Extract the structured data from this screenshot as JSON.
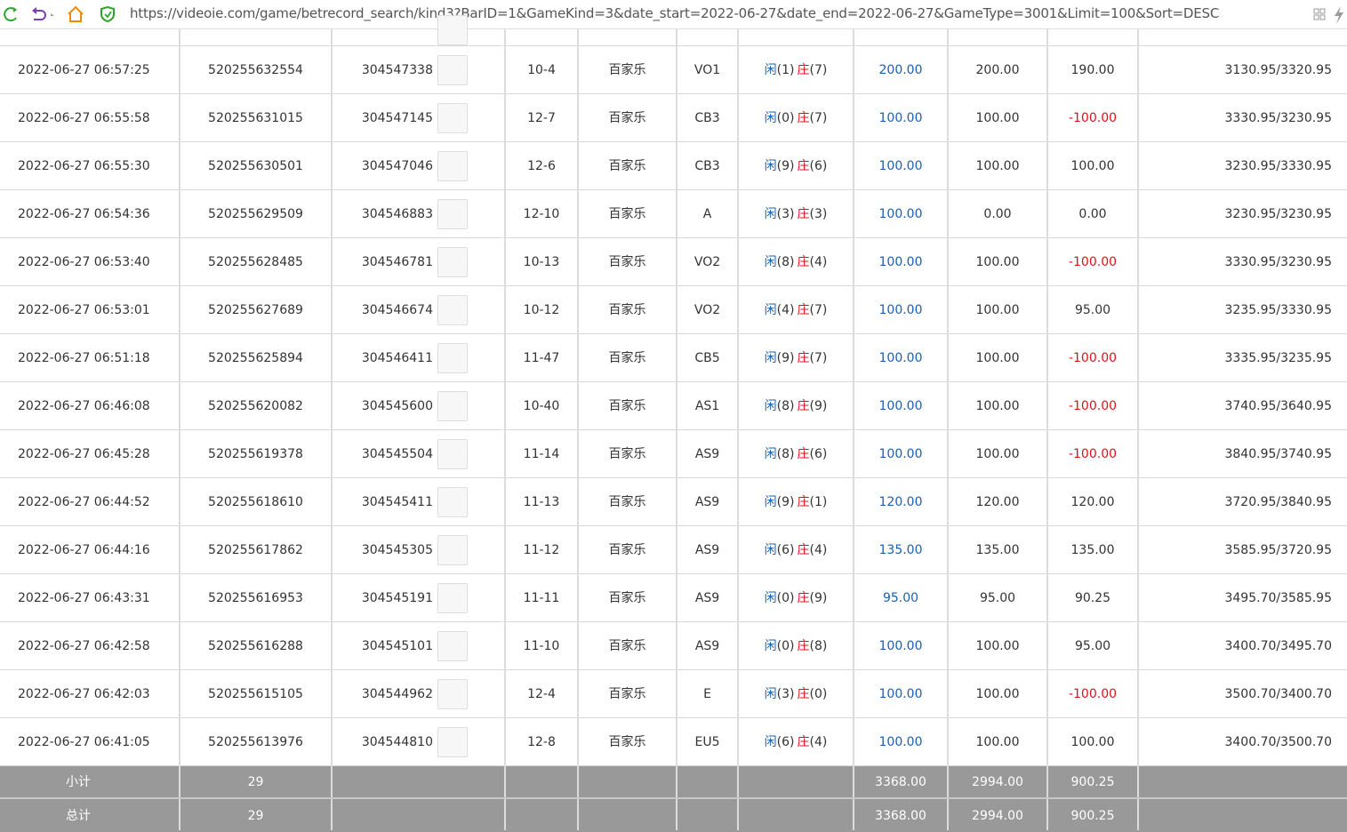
{
  "address_bar": {
    "url": "https://videoie.com/game/betrecord_search/kind3?BarID=1&GameKind=3&date_start=2022-06-27&date_end=2022-06-27&GameType=3001&Limit=100&Sort=DESC"
  },
  "table": {
    "player_label": "闲",
    "banker_label": "庄",
    "rows": [
      {
        "time": "2022-06-27 06:57:25",
        "bet_id": "520255632554",
        "game_id": "304547338",
        "round": "10-4",
        "game": "百家乐",
        "table": "VO1",
        "player": "(1)",
        "banker": "(7)",
        "bet": "200.00",
        "valid": "200.00",
        "profit": "190.00",
        "balance": "3130.95/3320.95"
      },
      {
        "time": "2022-06-27 06:55:58",
        "bet_id": "520255631015",
        "game_id": "304547145",
        "round": "12-7",
        "game": "百家乐",
        "table": "CB3",
        "player": "(0)",
        "banker": "(7)",
        "bet": "100.00",
        "valid": "100.00",
        "profit": "-100.00",
        "balance": "3330.95/3230.95"
      },
      {
        "time": "2022-06-27 06:55:30",
        "bet_id": "520255630501",
        "game_id": "304547046",
        "round": "12-6",
        "game": "百家乐",
        "table": "CB3",
        "player": "(9)",
        "banker": "(6)",
        "bet": "100.00",
        "valid": "100.00",
        "profit": "100.00",
        "balance": "3230.95/3330.95"
      },
      {
        "time": "2022-06-27 06:54:36",
        "bet_id": "520255629509",
        "game_id": "304546883",
        "round": "12-10",
        "game": "百家乐",
        "table": "A",
        "player": "(3)",
        "banker": "(3)",
        "bet": "100.00",
        "valid": "0.00",
        "profit": "0.00",
        "balance": "3230.95/3230.95"
      },
      {
        "time": "2022-06-27 06:53:40",
        "bet_id": "520255628485",
        "game_id": "304546781",
        "round": "10-13",
        "game": "百家乐",
        "table": "VO2",
        "player": "(8)",
        "banker": "(4)",
        "bet": "100.00",
        "valid": "100.00",
        "profit": "-100.00",
        "balance": "3330.95/3230.95"
      },
      {
        "time": "2022-06-27 06:53:01",
        "bet_id": "520255627689",
        "game_id": "304546674",
        "round": "10-12",
        "game": "百家乐",
        "table": "VO2",
        "player": "(4)",
        "banker": "(7)",
        "bet": "100.00",
        "valid": "100.00",
        "profit": "95.00",
        "balance": "3235.95/3330.95"
      },
      {
        "time": "2022-06-27 06:51:18",
        "bet_id": "520255625894",
        "game_id": "304546411",
        "round": "11-47",
        "game": "百家乐",
        "table": "CB5",
        "player": "(9)",
        "banker": "(7)",
        "bet": "100.00",
        "valid": "100.00",
        "profit": "-100.00",
        "balance": "3335.95/3235.95"
      },
      {
        "time": "2022-06-27 06:46:08",
        "bet_id": "520255620082",
        "game_id": "304545600",
        "round": "10-40",
        "game": "百家乐",
        "table": "AS1",
        "player": "(8)",
        "banker": "(9)",
        "bet": "100.00",
        "valid": "100.00",
        "profit": "-100.00",
        "balance": "3740.95/3640.95"
      },
      {
        "time": "2022-06-27 06:45:28",
        "bet_id": "520255619378",
        "game_id": "304545504",
        "round": "11-14",
        "game": "百家乐",
        "table": "AS9",
        "player": "(8)",
        "banker": "(6)",
        "bet": "100.00",
        "valid": "100.00",
        "profit": "-100.00",
        "balance": "3840.95/3740.95"
      },
      {
        "time": "2022-06-27 06:44:52",
        "bet_id": "520255618610",
        "game_id": "304545411",
        "round": "11-13",
        "game": "百家乐",
        "table": "AS9",
        "player": "(9)",
        "banker": "(1)",
        "bet": "120.00",
        "valid": "120.00",
        "profit": "120.00",
        "balance": "3720.95/3840.95"
      },
      {
        "time": "2022-06-27 06:44:16",
        "bet_id": "520255617862",
        "game_id": "304545305",
        "round": "11-12",
        "game": "百家乐",
        "table": "AS9",
        "player": "(6)",
        "banker": "(4)",
        "bet": "135.00",
        "valid": "135.00",
        "profit": "135.00",
        "balance": "3585.95/3720.95"
      },
      {
        "time": "2022-06-27 06:43:31",
        "bet_id": "520255616953",
        "game_id": "304545191",
        "round": "11-11",
        "game": "百家乐",
        "table": "AS9",
        "player": "(0)",
        "banker": "(9)",
        "bet": "95.00",
        "valid": "95.00",
        "profit": "90.25",
        "balance": "3495.70/3585.95"
      },
      {
        "time": "2022-06-27 06:42:58",
        "bet_id": "520255616288",
        "game_id": "304545101",
        "round": "11-10",
        "game": "百家乐",
        "table": "AS9",
        "player": "(0)",
        "banker": "(8)",
        "bet": "100.00",
        "valid": "100.00",
        "profit": "95.00",
        "balance": "3400.70/3495.70"
      },
      {
        "time": "2022-06-27 06:42:03",
        "bet_id": "520255615105",
        "game_id": "304544962",
        "round": "12-4",
        "game": "百家乐",
        "table": "E",
        "player": "(3)",
        "banker": "(0)",
        "bet": "100.00",
        "valid": "100.00",
        "profit": "-100.00",
        "balance": "3500.70/3400.70"
      },
      {
        "time": "2022-06-27 06:41:05",
        "bet_id": "520255613976",
        "game_id": "304544810",
        "round": "12-8",
        "game": "百家乐",
        "table": "EU5",
        "player": "(6)",
        "banker": "(4)",
        "bet": "100.00",
        "valid": "100.00",
        "profit": "100.00",
        "balance": "3400.70/3500.70"
      }
    ],
    "subtotal": {
      "label": "小计",
      "count": "29",
      "bet": "3368.00",
      "valid": "2994.00",
      "profit": "900.25"
    },
    "total": {
      "label": "总计",
      "count": "29",
      "bet": "3368.00",
      "valid": "2994.00",
      "profit": "900.25"
    }
  }
}
